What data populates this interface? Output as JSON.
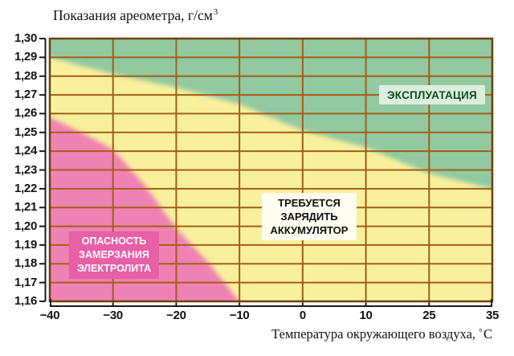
{
  "page": {
    "background": "#ffffff"
  },
  "chart_data": {
    "type": "area",
    "title_base": "Показания ареометра, г/см",
    "title_sup": "3",
    "xlabel_base": "Температура окружающего воздуха,",
    "xlabel_degree": "°",
    "xlabel_unit": "С",
    "x_tick_labels": [
      "−40",
      "−30",
      "−20",
      "−10",
      "0",
      "10",
      "25",
      "35"
    ],
    "x_tick_values": [
      -40,
      -30,
      -20,
      -10,
      0,
      10,
      25,
      35
    ],
    "y_tick_labels": [
      "1,30",
      "1,29",
      "1,28",
      "1,27",
      "1,26",
      "1,25",
      "1,24",
      "1,23",
      "1,22",
      "1,21",
      "1,20",
      "1,19",
      "1,18",
      "1,17",
      "1,16"
    ],
    "y_range": [
      1.16,
      1.3
    ],
    "y_step": 0.01,
    "grid": true,
    "legend_position": "none",
    "zones": [
      {
        "id": "operation",
        "label": "ЭКСПЛУАТАЦИЯ",
        "fill": "#93c9a1",
        "label_bg": "#dcefdf",
        "label_color": "#114d1c"
      },
      {
        "id": "charge-required",
        "label_lines": [
          "ТРЕБУЕТСЯ",
          "ЗАРЯДИТЬ",
          "АККУМУЛЯТОР"
        ],
        "fill": "#f8f09c",
        "label_bg": "#fdfdf1",
        "label_color": "#101010"
      },
      {
        "id": "freezing-danger",
        "label_lines": [
          "ОПАСНОСТЬ",
          "ЗАМЕРЗАНИЯ",
          "ЭЛЕКТРОЛИТА"
        ],
        "fill": "#ef82b4",
        "label_bg": "#e75fa5",
        "label_color": "#ffffff"
      }
    ],
    "boundaries": {
      "operation_lower": {
        "x": [
          -40,
          -30,
          -20,
          -10,
          0,
          10,
          25,
          35
        ],
        "y": [
          1.29,
          1.281,
          1.274,
          1.265,
          1.251,
          1.242,
          1.228,
          1.22
        ]
      },
      "freezing_upper": {
        "x": [
          -40,
          -35,
          -30,
          -25,
          -20,
          -15,
          -10
        ],
        "y": [
          1.258,
          1.25,
          1.241,
          1.222,
          1.199,
          1.181,
          1.16
        ]
      }
    },
    "colors": {
      "grid": "#a25e16",
      "plot_border": "#6e400e",
      "axis": "#1a1a1a",
      "text": "#111111"
    }
  }
}
